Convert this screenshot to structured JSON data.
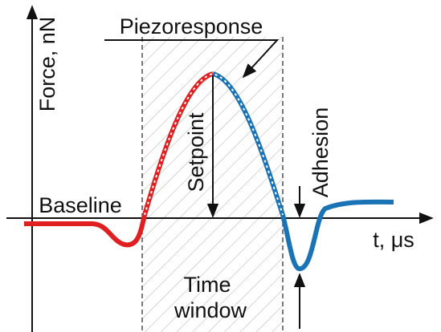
{
  "y_axis_label": "Force, nN",
  "x_axis_label": "t, μs",
  "labels": {
    "piezoresponse": "Piezoresponse",
    "baseline": "Baseline",
    "setpoint": "Setpoint",
    "adhesion": "Adhesion"
  },
  "time_window": [
    "Time",
    "window"
  ]
}
